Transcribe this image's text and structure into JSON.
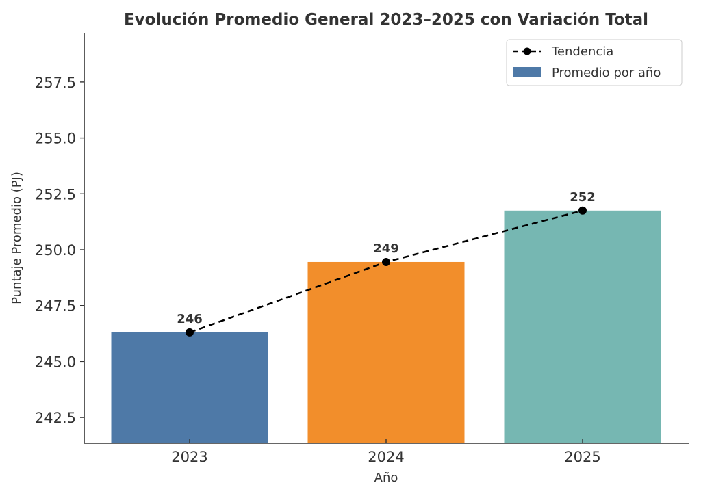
{
  "chart_data": {
    "type": "bar",
    "title": "Evolución Promedio General 2023–2025 con Variación Total",
    "xlabel": "Año",
    "ylabel": "Puntaje Promedio (PJ)",
    "categories": [
      "2023",
      "2024",
      "2025"
    ],
    "values": [
      246.3,
      249.45,
      251.75
    ],
    "data_labels": [
      "246",
      "249",
      "252"
    ],
    "bar_colors": [
      "#4e79a7",
      "#f28e2b",
      "#76b7b2"
    ],
    "ylim": [
      241.34,
      259.7
    ],
    "yticks": [
      242.5,
      245.0,
      247.5,
      250.0,
      252.5,
      255.0,
      257.5
    ],
    "ytick_labels": [
      "242.5",
      "245.0",
      "247.5",
      "250.0",
      "252.5",
      "255.0",
      "257.5"
    ],
    "grid": false,
    "series": [
      {
        "name": "Promedio por año",
        "kind": "bar",
        "values": [
          246.3,
          249.45,
          251.75
        ],
        "color": "#4e79a7"
      },
      {
        "name": "Tendencia",
        "kind": "line",
        "style": "dashed",
        "marker": "circle",
        "values": [
          246.3,
          249.45,
          251.75
        ],
        "color": "#000000"
      }
    ],
    "legend": {
      "position": "top-right",
      "entries": [
        "Tendencia",
        "Promedio por año"
      ]
    }
  }
}
